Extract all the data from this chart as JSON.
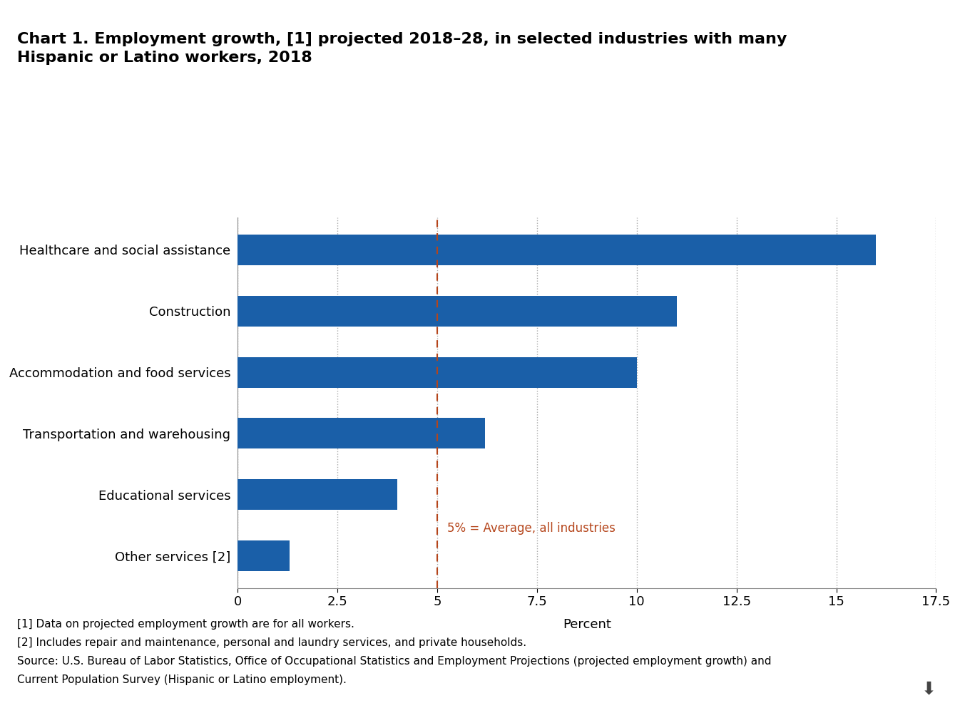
{
  "title_line1": "Chart 1. Employment growth, [1] projected 2018–28, in selected industries with many",
  "title_line2": "Hispanic or Latino workers, 2018",
  "categories": [
    "Healthcare and social assistance",
    "Construction",
    "Accommodation and food services",
    "Transportation and warehousing",
    "Educational services",
    "Other services [2]"
  ],
  "values": [
    16.0,
    11.0,
    10.0,
    6.2,
    4.0,
    1.3
  ],
  "bar_color": "#1a5fa8",
  "xlim": [
    0,
    17.5
  ],
  "xticks": [
    0,
    2.5,
    5.0,
    7.5,
    10.0,
    12.5,
    15.0,
    17.5
  ],
  "xtick_labels": [
    "0",
    "2.5",
    "5",
    "7.5",
    "10",
    "12.5",
    "15",
    "17.5"
  ],
  "xlabel": "Percent",
  "average_line_x": 5.0,
  "average_label": "5% = Average, all industries",
  "average_color": "#b5451b",
  "grid_color": "#aaaaaa",
  "footnote1": "[1] Data on projected employment growth are for all workers.",
  "footnote2": "[2] Includes repair and maintenance, personal and laundry services, and private households.",
  "footnote3": "Source: U.S. Bureau of Labor Statistics, Office of Occupational Statistics and Employment Projections (projected employment growth) and",
  "footnote4": "Current Population Survey (Hispanic or Latino employment).",
  "background_color": "#ffffff",
  "title_fontsize": 16,
  "ylabel_fontsize": 13,
  "tick_fontsize": 13,
  "xlabel_fontsize": 13,
  "footnote_fontsize": 11,
  "avg_label_fontsize": 12,
  "bar_height": 0.5
}
